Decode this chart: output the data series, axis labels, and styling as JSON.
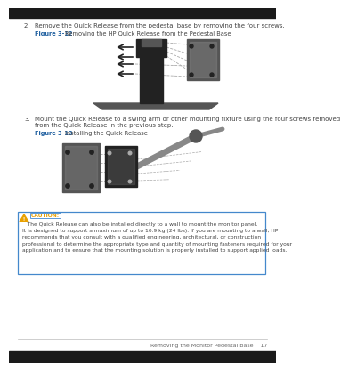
{
  "bg_color": "#ffffff",
  "step2_number": "2.",
  "step2_text": "Remove the Quick Release from the pedestal base by removing the four screws.",
  "fig312_label": "Figure 3-12",
  "fig312_caption": "Removing the HP Quick Release from the Pedestal Base",
  "step3_number": "3.",
  "step3_line1": "Mount the Quick Release to a swing arm or other mounting fixture using the four screws removed",
  "step3_line2": "from the Quick Release in the previous step.",
  "fig313_label": "Figure 3-13",
  "fig313_caption": "Installing the Quick Release",
  "caution_symbol": "⚠",
  "caution_label": "CAUTION:",
  "caution_line1": "   The Quick Release can also be installed directly to a wall to mount the monitor panel.",
  "caution_line2": "It is designed to support a maximum of up to 10.9 kg (24 lbs). If you are mounting to a wall, HP",
  "caution_line3": "recommends that you consult with a qualified engineering, architectural, or construction",
  "caution_line4": "professional to determine the appropriate type and quantity of mounting fasteners required for your",
  "caution_line5": "application and to ensure that the mounting solution is properly installed to support applied loads.",
  "footer_text": "Removing the Monitor Pedestal Base    17",
  "label_color": "#2060a0",
  "caution_label_color": "#e8a000",
  "caution_box_color": "#4488cc",
  "text_color": "#444444",
  "footer_color": "#666666",
  "dark_color": "#222222",
  "mid_color": "#555555",
  "light_color": "#888888",
  "lighter_color": "#aaaaaa",
  "black_bar_color": "#1a1a1a",
  "text_fontsize": 5.0,
  "caption_fontsize": 4.8,
  "caution_text_fontsize": 4.3,
  "footer_fontsize": 4.5
}
